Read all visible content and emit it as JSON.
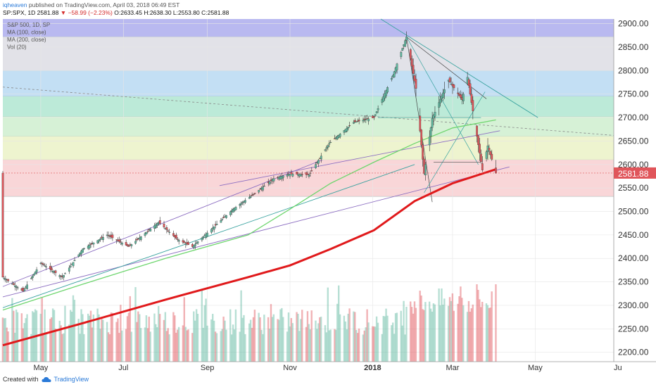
{
  "header": {
    "author": "iqheaven",
    "published_text": "published on TradingView.com, April 03, 2018 06:49 EST",
    "symbol": "SPX",
    "line2_prefix": "SP:SPX, 1D  2581.88",
    "change_text": "−58.99 (−2.23%)",
    "ohlc_text": "O:2633.45 H:2638.30 L:2553.80 C:2581.88"
  },
  "legend": {
    "items": [
      "S&P 500, 1D, SP",
      "MA (100, close)",
      "MA (200, close)",
      "Vol (20)"
    ]
  },
  "footer": {
    "created_with": "Created with",
    "brand": "TradingView"
  },
  "colors": {
    "up": "#5fb9a0",
    "down": "#e0555a",
    "ma100": "#6fd66f",
    "ma200": "#e0191b",
    "price_tag": "#e0555a",
    "trend_purple": "#8d6fc2",
    "trend_teal": "#3aa3a0"
  },
  "chart_data": {
    "type": "candlestick",
    "symbol": "SP:SPX",
    "interval": "1D",
    "last_price": 2581.88,
    "last_price_label": "2581.88",
    "y_axis": {
      "range": [
        2180,
        2910
      ],
      "ticks": [
        2200,
        2250,
        2300,
        2350,
        2400,
        2450,
        2500,
        2550,
        2600,
        2650,
        2700,
        2750,
        2800,
        2850,
        2900
      ],
      "tick_labels": [
        "2200.00",
        "2250.00",
        "2300.00",
        "2350.00",
        "2400.00",
        "2450.00",
        "2500.00",
        "2550.00",
        "2600.00",
        "2650.00",
        "2700.00",
        "2750.00",
        "2800.00",
        "2850.00",
        "2900.00"
      ]
    },
    "x_axis": {
      "labels": [
        "May",
        "Jul",
        "Sep",
        "Nov",
        "2018",
        "Mar",
        "May",
        "Ju"
      ],
      "label_dates": [
        "2017-05-01",
        "2017-07-01",
        "2017-09-01",
        "2017-11-01",
        "2018-01-01",
        "2018-03-01",
        "2018-05-01",
        "2018-07-01"
      ],
      "range": [
        "2017-04-03",
        "2018-06-28"
      ]
    },
    "fib_bands": [
      {
        "from": 2872,
        "to": 2910,
        "color": "#b9b9f0"
      },
      {
        "from": 2800,
        "to": 2872,
        "color": "#e2e2e8"
      },
      {
        "from": 2745,
        "to": 2800,
        "color": "#c3dff4"
      },
      {
        "from": 2702,
        "to": 2745,
        "color": "#bcead8"
      },
      {
        "from": 2660,
        "to": 2702,
        "color": "#d6f1d6"
      },
      {
        "from": 2610,
        "to": 2660,
        "color": "#eef4cf"
      },
      {
        "from": 2532,
        "to": 2610,
        "color": "#f9d6d8"
      }
    ],
    "price_path": [
      [
        "2017-04-03",
        2360
      ],
      [
        "2017-04-18",
        2330
      ],
      [
        "2017-05-01",
        2390
      ],
      [
        "2017-05-17",
        2360
      ],
      [
        "2017-06-01",
        2420
      ],
      [
        "2017-06-19",
        2450
      ],
      [
        "2017-07-05",
        2425
      ],
      [
        "2017-07-27",
        2477
      ],
      [
        "2017-08-10",
        2440
      ],
      [
        "2017-08-21",
        2425
      ],
      [
        "2017-09-05",
        2465
      ],
      [
        "2017-09-20",
        2505
      ],
      [
        "2017-10-02",
        2530
      ],
      [
        "2017-10-20",
        2570
      ],
      [
        "2017-11-01",
        2580
      ],
      [
        "2017-11-15",
        2578
      ],
      [
        "2017-11-30",
        2645
      ],
      [
        "2017-12-18",
        2690
      ],
      [
        "2018-01-02",
        2700
      ],
      [
        "2018-01-16",
        2790
      ],
      [
        "2018-01-26",
        2872
      ],
      [
        "2018-02-02",
        2762
      ],
      [
        "2018-02-08",
        2581
      ],
      [
        "2018-02-14",
        2698
      ],
      [
        "2018-02-26",
        2780
      ],
      [
        "2018-03-08",
        2738
      ],
      [
        "2018-03-12",
        2786
      ],
      [
        "2018-03-23",
        2588
      ],
      [
        "2018-03-27",
        2640
      ],
      [
        "2018-04-02",
        2581.88
      ]
    ],
    "ma100": [
      [
        "2017-04-03",
        2290
      ],
      [
        "2017-06-01",
        2345
      ],
      [
        "2017-08-01",
        2400
      ],
      [
        "2017-10-01",
        2450
      ],
      [
        "2017-11-01",
        2505
      ],
      [
        "2017-12-01",
        2560
      ],
      [
        "2018-01-02",
        2605
      ],
      [
        "2018-02-01",
        2645
      ],
      [
        "2018-03-01",
        2678
      ],
      [
        "2018-04-02",
        2695
      ]
    ],
    "ma200": [
      [
        "2017-04-03",
        2215
      ],
      [
        "2017-06-01",
        2262
      ],
      [
        "2017-08-01",
        2312
      ],
      [
        "2017-10-01",
        2360
      ],
      [
        "2017-11-01",
        2385
      ],
      [
        "2017-12-01",
        2420
      ],
      [
        "2018-01-02",
        2460
      ],
      [
        "2018-02-01",
        2522
      ],
      [
        "2018-03-01",
        2560
      ],
      [
        "2018-04-02",
        2590
      ]
    ],
    "volume": {
      "max_bar_relative": 1.0
    }
  }
}
